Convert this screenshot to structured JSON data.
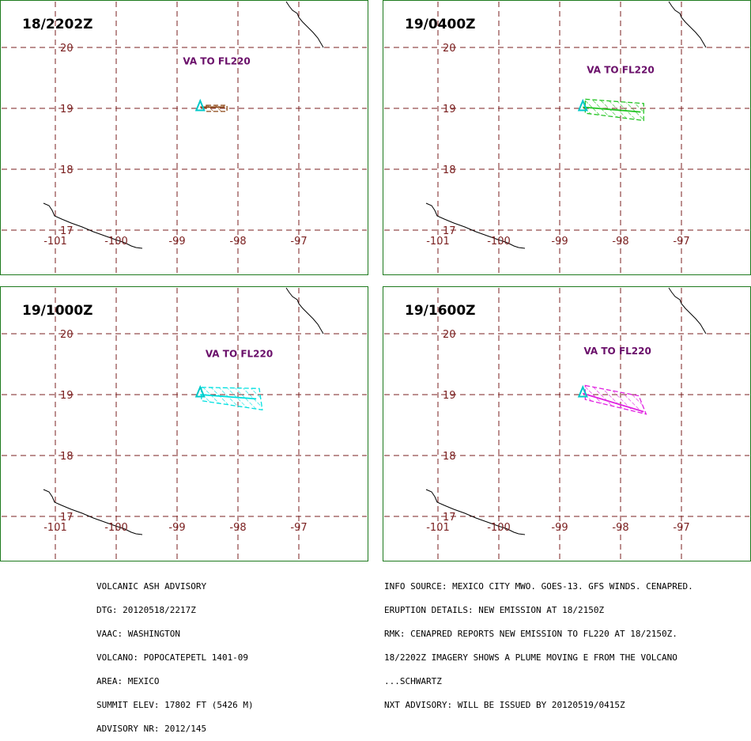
{
  "panels": [
    {
      "time_label": "18/2202Z",
      "va_label": "VA TO FL220",
      "color": "#8b4513",
      "label_lat": 19.72,
      "label_lon": -98.35,
      "polygon": [
        [
          -98.52,
          19.05
        ],
        [
          -98.18,
          19.05
        ],
        [
          -98.18,
          18.95
        ],
        [
          -98.52,
          18.95
        ]
      ],
      "axis": [
        [
          -98.62,
          19.02
        ],
        [
          -98.22,
          19.02
        ]
      ]
    },
    {
      "time_label": "19/0400Z",
      "va_label": "VA TO FL220",
      "color": "#22c422",
      "label_lat": 19.58,
      "label_lon": -98.0,
      "polygon": [
        [
          -98.58,
          19.15
        ],
        [
          -97.62,
          19.08
        ],
        [
          -97.62,
          18.8
        ],
        [
          -98.58,
          18.92
        ]
      ],
      "axis": [
        [
          -98.62,
          19.02
        ],
        [
          -97.67,
          18.94
        ]
      ]
    },
    {
      "time_label": "19/1000Z",
      "va_label": "VA TO FL220",
      "color": "#00e0e0",
      "label_lat": 19.62,
      "label_lon": -97.98,
      "polygon": [
        [
          -98.6,
          19.12
        ],
        [
          -97.65,
          19.1
        ],
        [
          -97.6,
          18.75
        ],
        [
          -98.6,
          18.9
        ]
      ],
      "axis": [
        [
          -98.62,
          19.0
        ],
        [
          -97.7,
          18.93
        ]
      ]
    },
    {
      "time_label": "19/1600Z",
      "va_label": "VA TO FL220",
      "color": "#e020e0",
      "label_lat": 19.66,
      "label_lon": -98.05,
      "polygon": [
        [
          -98.58,
          19.15
        ],
        [
          -97.7,
          18.98
        ],
        [
          -97.58,
          18.68
        ],
        [
          -98.58,
          18.92
        ]
      ],
      "axis": [
        [
          -98.62,
          19.02
        ],
        [
          -97.62,
          18.72
        ]
      ]
    }
  ],
  "map": {
    "lat_ticks": [
      "20",
      "19",
      "18",
      "17"
    ],
    "lon_ticks": [
      "-101",
      "-100",
      "-99",
      "-98",
      "-97"
    ],
    "grid_color": "#7a1f1f",
    "volcano_lat": 19.02,
    "volcano_lon": -98.62,
    "volcano_color": "#00c8c8"
  },
  "advisory_left": [
    "VOLCANIC ASH ADVISORY",
    "DTG: 20120518/2217Z",
    "VAAC: WASHINGTON",
    "VOLCANO: POPOCATEPETL 1401-09",
    "AREA: MEXICO",
    "SUMMIT ELEV: 17802 FT (5426 M)",
    "ADVISORY NR: 2012/145"
  ],
  "advisory_right": [
    "INFO SOURCE: MEXICO CITY MWO. GOES-13. GFS WINDS. CENAPRED.",
    "ERUPTION DETAILS: NEW EMISSION AT 18/2150Z",
    "RMK: CENAPRED REPORTS NEW EMISSION TO FL220 AT 18/2150Z.",
    "18/2202Z IMAGERY SHOWS A PLUME MOVING E FROM THE VOLCANO",
    "...SCHWARTZ",
    "NXT ADVISORY: WILL BE ISSUED BY 20120519/0415Z"
  ]
}
